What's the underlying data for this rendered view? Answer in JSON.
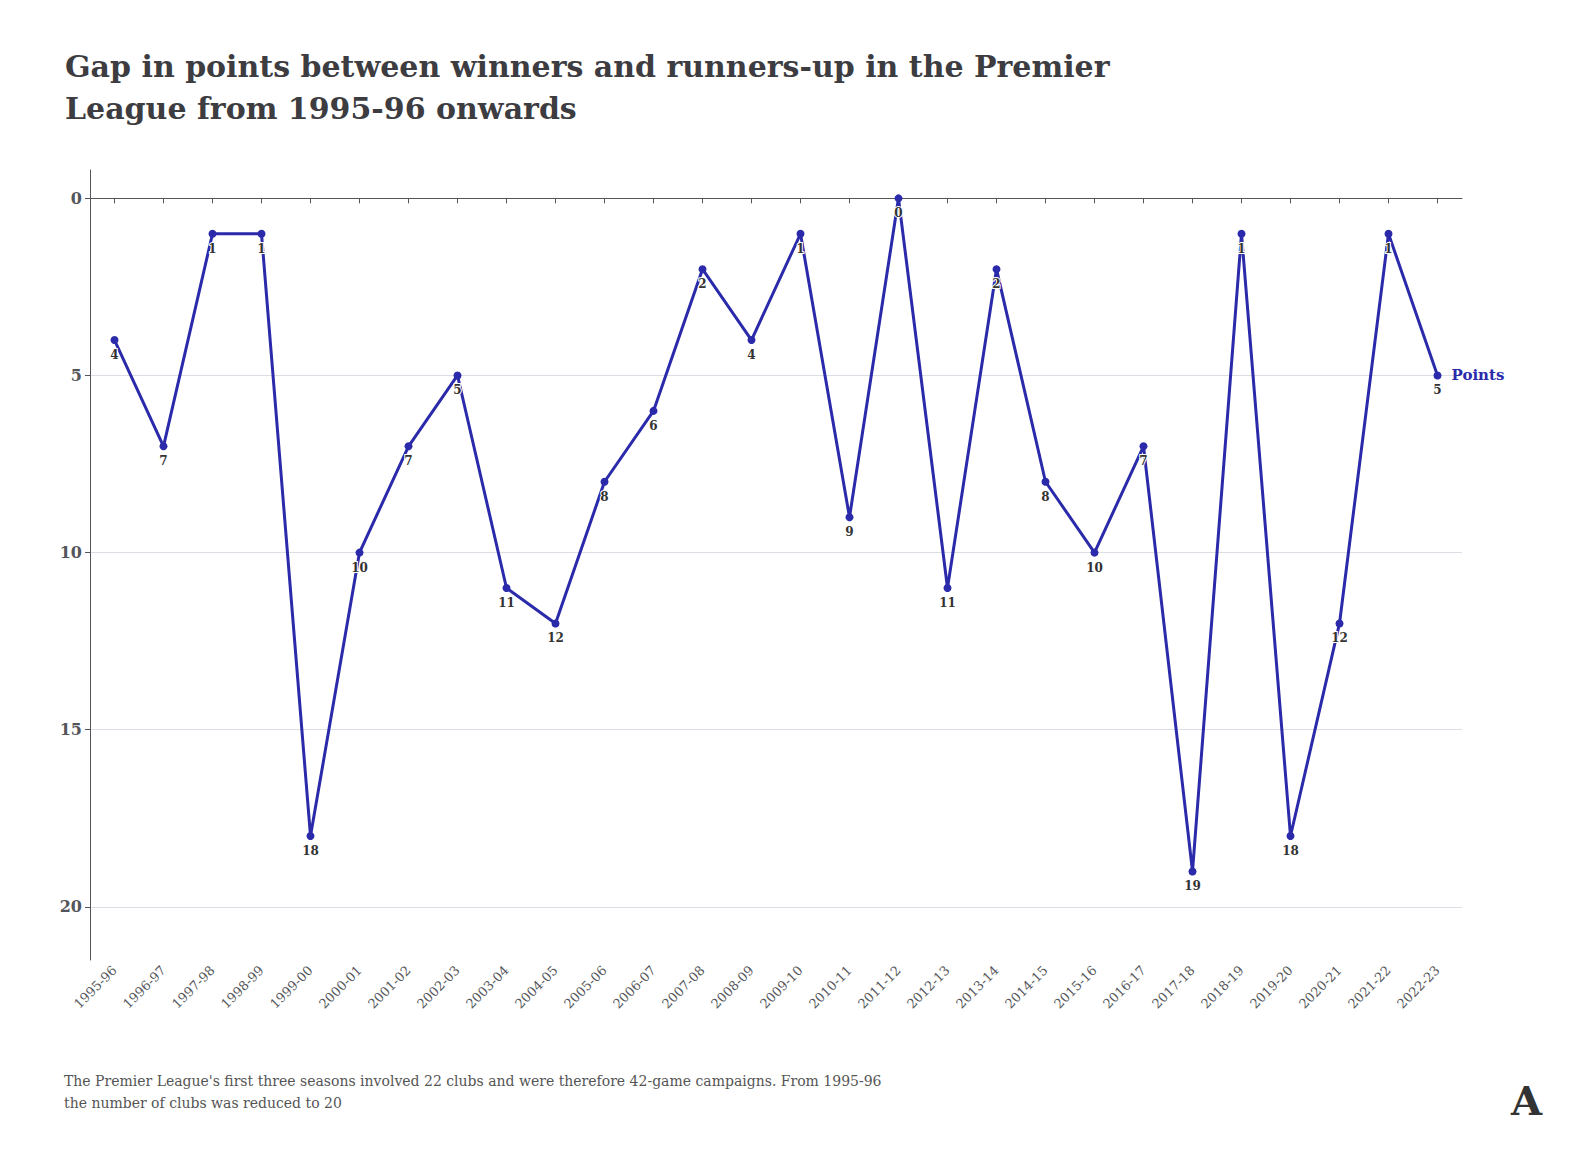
{
  "chart_data": {
    "type": "line",
    "title": "Gap in points between winners and runners-up in the Premier\nLeague from 1995-96 onwards",
    "categories": [
      "1995-96",
      "1996-97",
      "1997-98",
      "1998-99",
      "1999-00",
      "2000-01",
      "2001-02",
      "2002-03",
      "2003-04",
      "2004-05",
      "2005-06",
      "2006-07",
      "2007-08",
      "2008-09",
      "2009-10",
      "2010-11",
      "2011-12",
      "2012-13",
      "2013-14",
      "2014-15",
      "2015-16",
      "2016-17",
      "2017-18",
      "2018-19",
      "2019-20",
      "2020-21",
      "2021-22",
      "2022-23"
    ],
    "series": [
      {
        "name": "Points",
        "color": "#2a2aaa",
        "values": [
          4,
          7,
          1,
          1,
          18,
          10,
          7,
          5,
          11,
          12,
          8,
          6,
          2,
          4,
          1,
          9,
          0,
          11,
          2,
          8,
          10,
          7,
          19,
          1,
          18,
          12,
          1,
          5
        ]
      }
    ],
    "ylim": [
      21.5,
      -0.8
    ],
    "yticks": [
      0,
      5,
      10,
      15,
      20
    ],
    "grid": true,
    "data_labels": true,
    "annotations": [
      "The Premier League's first three seasons involved 22 clubs and were therefore 42-game campaigns. From 1995-96",
      "the number of clubs was reduced to 20",
      "A"
    ]
  }
}
